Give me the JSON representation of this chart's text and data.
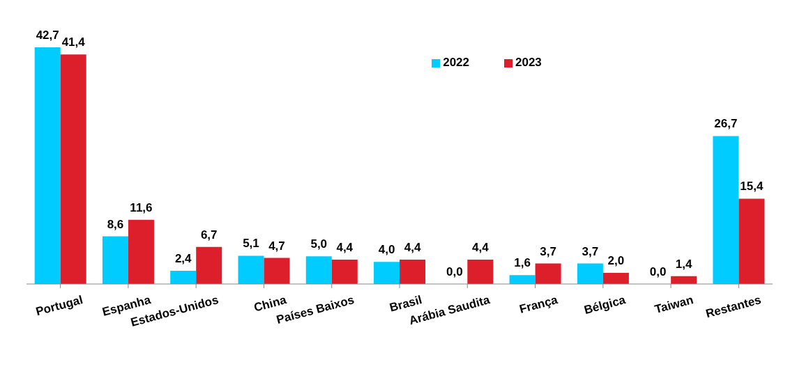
{
  "chart_data": {
    "type": "bar",
    "categories": [
      "Portugal",
      "Espanha",
      "Estados-Unidos",
      "China",
      "Países Baixos",
      "Brasil",
      "Arábia Saudita",
      "França",
      "Bélgica",
      "Taiwan",
      "Restantes"
    ],
    "series": [
      {
        "name": "2022",
        "color": "#00ccff",
        "values": [
          42.7,
          8.6,
          2.4,
          5.1,
          5.0,
          4.0,
          0.0,
          1.6,
          3.7,
          0.0,
          26.7
        ],
        "value_labels": [
          "42,7",
          "8,6",
          "2,4",
          "5,1",
          "5,0",
          "4,0",
          "0,0",
          "1,6",
          "3,7",
          "0,0",
          "26,7"
        ]
      },
      {
        "name": "2023",
        "color": "#dc1f2b",
        "values": [
          41.4,
          11.6,
          6.7,
          4.7,
          4.4,
          4.4,
          4.4,
          3.7,
          2.0,
          1.4,
          15.4
        ],
        "value_labels": [
          "41,4",
          "11,6",
          "6,7",
          "4,7",
          "4,4",
          "4,4",
          "4,4",
          "3,7",
          "2,0",
          "1,4",
          "15,4"
        ]
      }
    ],
    "grid": false,
    "legend": "top"
  }
}
